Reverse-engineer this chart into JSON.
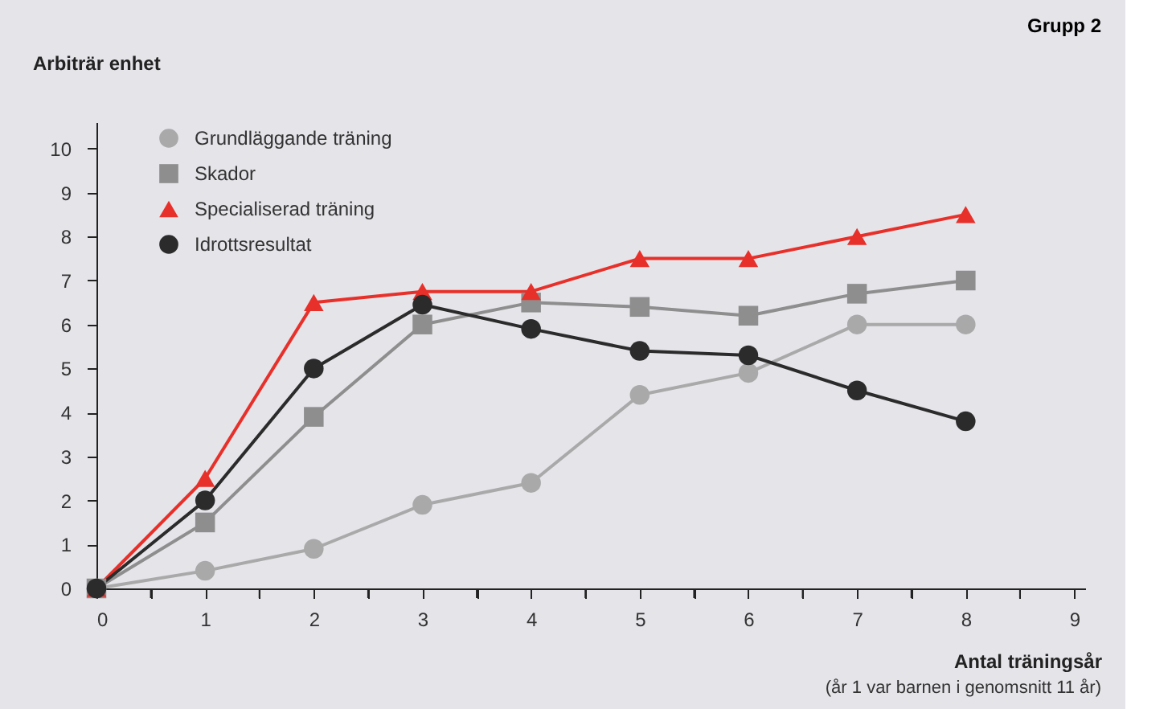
{
  "chart_data": {
    "type": "line",
    "title": "Grupp 2",
    "ylabel": "Arbiträr enhet",
    "xlabel": "Antal träningsår",
    "annotations": [
      "(år 1 var barnen i genomsnitt 11 år)"
    ],
    "x": [
      0,
      1,
      2,
      3,
      4,
      5,
      6,
      7,
      8
    ],
    "series": [
      {
        "name": "Grundläggande träning",
        "color": "#a9a9a9",
        "marker": "circle",
        "values": [
          0,
          0.4,
          0.9,
          1.9,
          2.4,
          4.4,
          4.9,
          6,
          6
        ]
      },
      {
        "name": "Skador",
        "color": "#8e8e8e",
        "marker": "square",
        "values": [
          0,
          1.5,
          3.9,
          6,
          6.5,
          6.4,
          6.2,
          6.7,
          7
        ]
      },
      {
        "name": "Specialiserad träning",
        "color": "#e8302a",
        "marker": "triangle",
        "values": [
          0,
          2.5,
          6.5,
          6.75,
          6.75,
          7.5,
          7.5,
          8,
          8.5
        ]
      },
      {
        "name": "Idrottsresultat",
        "color": "#2b2b2b",
        "marker": "circle",
        "values": [
          0,
          2,
          5,
          6.45,
          5.9,
          5.4,
          5.3,
          4.5,
          3.8
        ]
      }
    ],
    "xlim": [
      0,
      9.1
    ],
    "ylim": [
      0,
      10.6
    ],
    "xticks": [
      0,
      {
        "value": 0.5,
        "label": null
      },
      1,
      {
        "value": 1.5,
        "label": null
      },
      2,
      {
        "value": 2.5,
        "label": null
      },
      3,
      {
        "value": 3.5,
        "label": null
      },
      4,
      {
        "value": 4.5,
        "label": null
      },
      5,
      {
        "value": 5.5,
        "label": null
      },
      6,
      {
        "value": 6.5,
        "label": null
      },
      7,
      {
        "value": 7.5,
        "label": null
      },
      8,
      {
        "value": 8.5,
        "label": null
      },
      9
    ],
    "yticks": [
      0,
      1,
      2,
      3,
      4,
      5,
      6,
      7,
      8,
      9,
      10
    ],
    "grid": false,
    "legend": "top left",
    "line_style": "solid"
  }
}
